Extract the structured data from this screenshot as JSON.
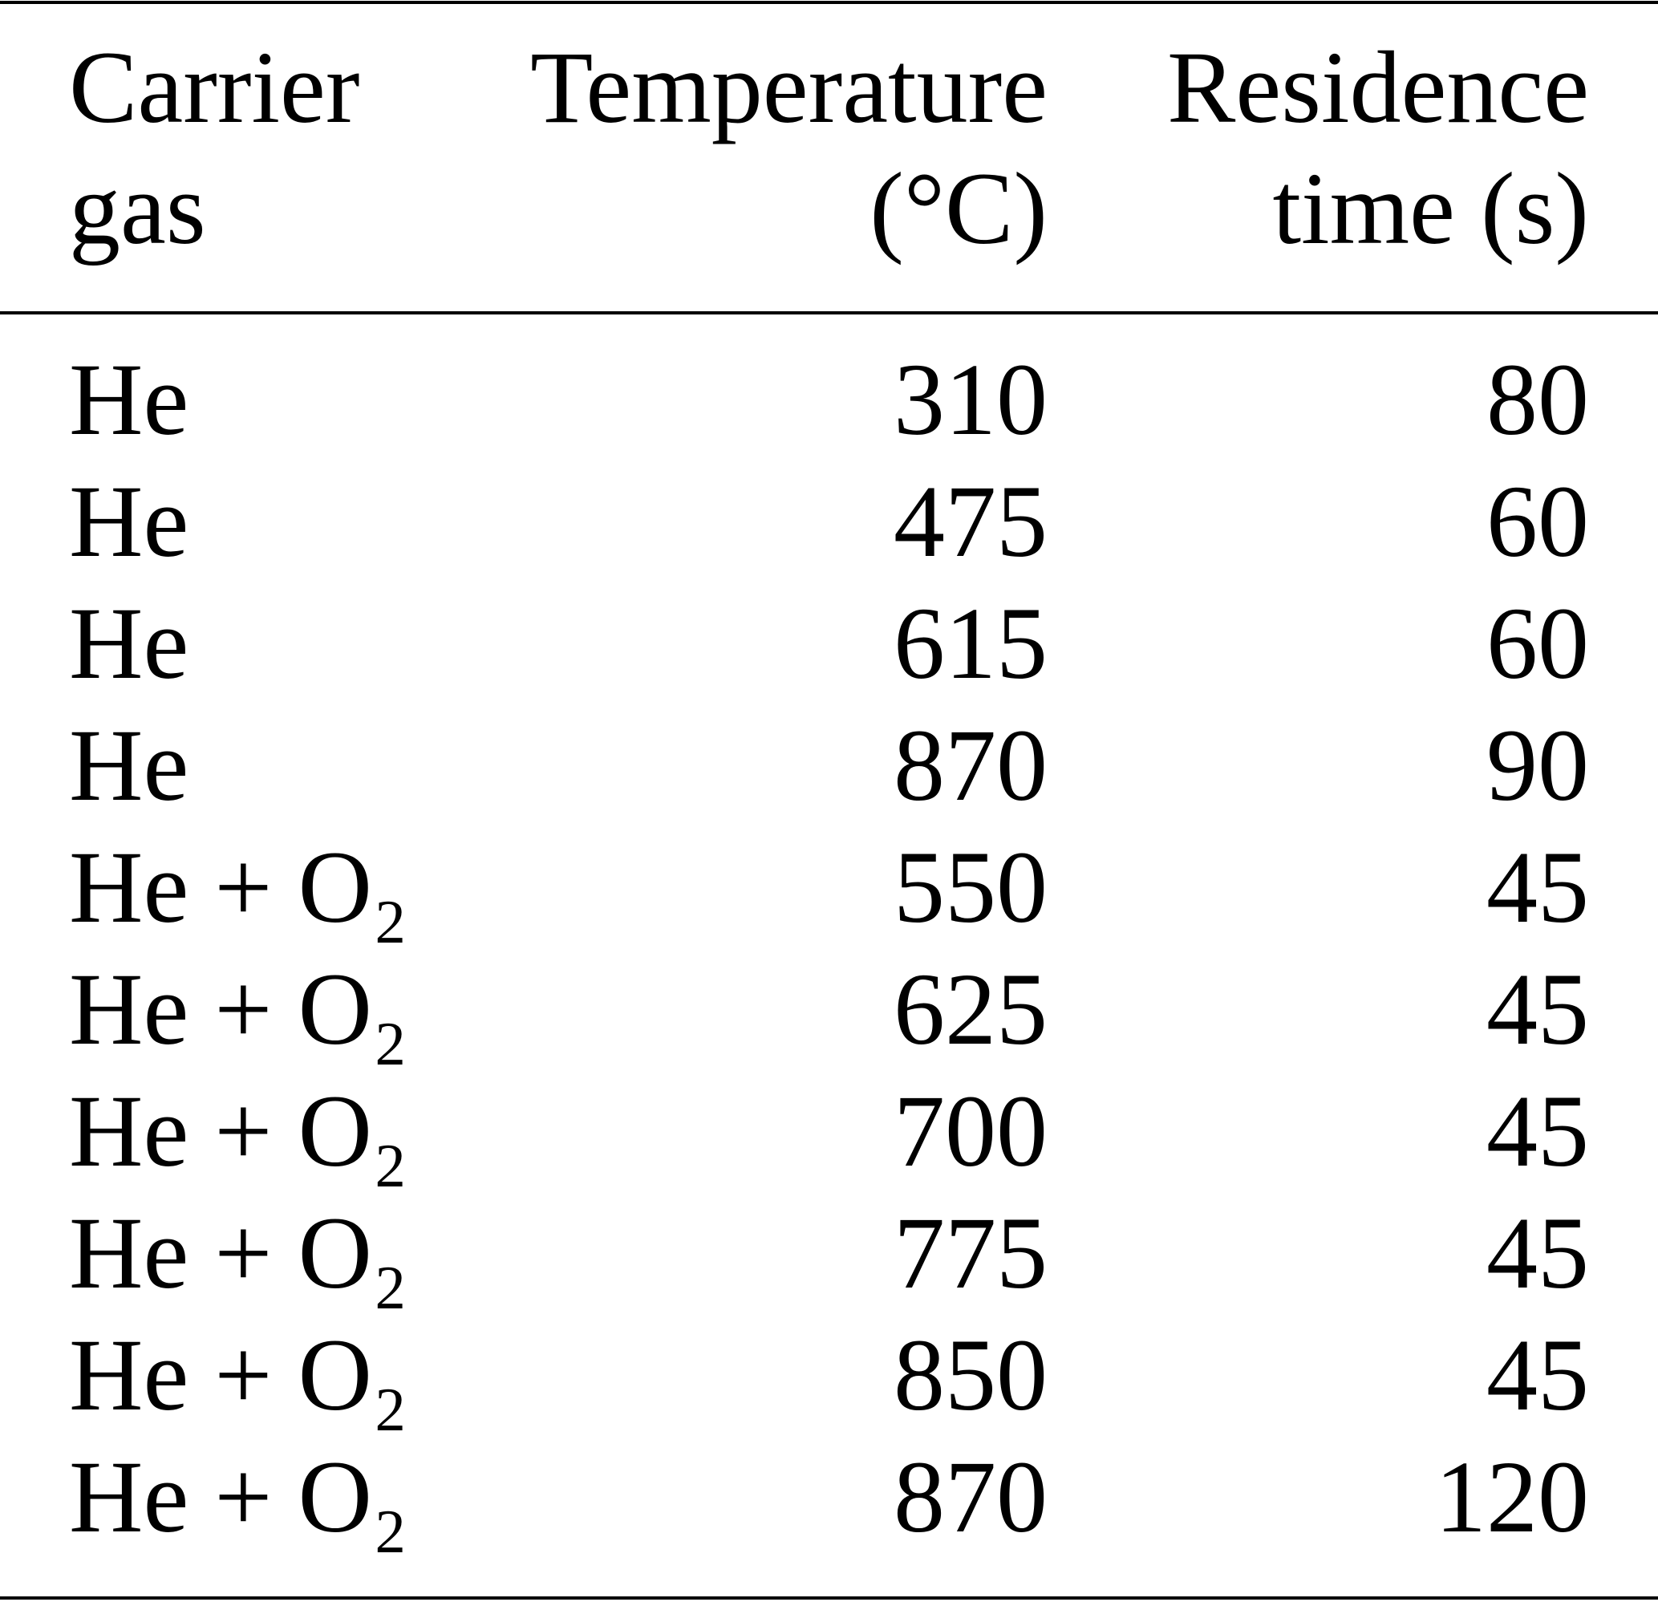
{
  "table": {
    "header": [
      [
        "Carrier",
        "gas"
      ],
      [
        "Temperature",
        "(°C)"
      ],
      [
        "Residence",
        "time (s)"
      ]
    ],
    "rows": [
      [
        "He",
        "310",
        "80"
      ],
      [
        "He",
        "475",
        "60"
      ],
      [
        "He",
        "615",
        "60"
      ],
      [
        "He",
        "870",
        "90"
      ],
      [
        "He + O₂",
        "550",
        "45"
      ],
      [
        "He + O₂",
        "625",
        "45"
      ],
      [
        "He + O₂",
        "700",
        "45"
      ],
      [
        "He + O₂",
        "775",
        "45"
      ],
      [
        "He + O₂",
        "850",
        "45"
      ],
      [
        "He + O₂",
        "870",
        "120"
      ]
    ]
  }
}
